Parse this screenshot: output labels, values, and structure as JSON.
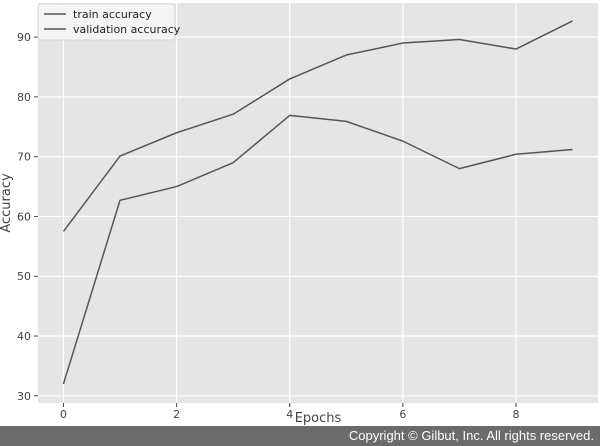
{
  "chart_data": {
    "type": "line",
    "title": "",
    "xlabel": "Epochs",
    "ylabel": "Accuracy",
    "x": [
      0,
      1,
      2,
      3,
      4,
      5,
      6,
      7,
      8,
      9
    ],
    "xlim": [
      -0.45,
      9.45
    ],
    "ylim": [
      28.8,
      95.7
    ],
    "x_ticks": [
      0,
      2,
      4,
      6,
      8
    ],
    "y_ticks": [
      30,
      40,
      50,
      60,
      70,
      80,
      90
    ],
    "grid": true,
    "legend_position": "top-left",
    "series": [
      {
        "name": "train accuracy",
        "values": [
          57.5,
          70.1,
          74.0,
          77.1,
          83.0,
          87.0,
          89.0,
          89.6,
          88.0,
          92.7
        ]
      },
      {
        "name": "validation accuracy",
        "values": [
          32.0,
          62.7,
          65.0,
          69.0,
          76.9,
          75.9,
          72.6,
          68.0,
          70.4,
          71.2
        ]
      }
    ]
  },
  "colors": {
    "plot_background": "#e5e5e5",
    "grid": "#ffffff",
    "line": "#555555",
    "text": "#444444",
    "footer_background": "#6b6b6b",
    "footer_text": "#ffffff"
  },
  "footer": {
    "copyright": "Copyright © Gilbut, Inc. All rights reserved."
  }
}
